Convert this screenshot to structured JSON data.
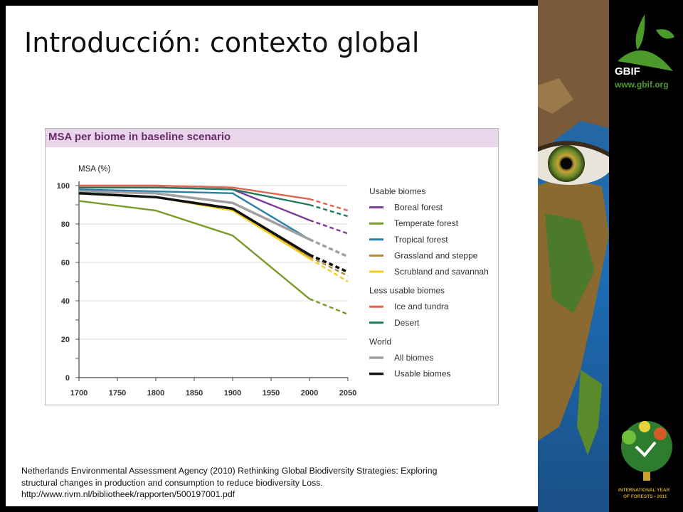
{
  "slide": {
    "title": "Introducción: contexto global",
    "citation_lines": [
      "Netherlands Environmental Assessment Agency (2010) Rethinking Global Biodiversity Strategies: Exploring",
      "structural changes in production and consumption to reduce biodiversity Loss.",
      "http://www.rivm.nl/bibliotheek/rapporten/500197001.pdf"
    ]
  },
  "branding": {
    "logo_text": "GBIF",
    "logo_url": "www.gbif.org",
    "badge_line1": "INTERNATIONAL YEAR",
    "badge_line2": "OF FORESTS • 2011",
    "colors": {
      "gbif_green": "#4c9a2a",
      "badge_gold": "#c9a227"
    }
  },
  "chart_data": {
    "type": "line",
    "title": "MSA per biome in baseline scenario",
    "ylabel": "MSA (%)",
    "xlabel": "",
    "x": [
      1700,
      1800,
      1900,
      2000,
      2050
    ],
    "xticks": [
      1700,
      1750,
      1800,
      1850,
      1900,
      1950,
      2000,
      2050
    ],
    "yticks": [
      0,
      20,
      40,
      60,
      80,
      100
    ],
    "ylim": [
      0,
      100
    ],
    "xlim": [
      1700,
      2050
    ],
    "projection_from": 2000,
    "projection_style": "dashed",
    "legend_position": "right",
    "legend_groups": [
      {
        "label": "Usable biomes",
        "series": [
          "Boreal forest",
          "Temperate forest",
          "Tropical forest",
          "Grassland and steppe",
          "Scrubland and savannah"
        ]
      },
      {
        "label": "Less usable biomes",
        "series": [
          "Ice and tundra",
          "Desert"
        ]
      },
      {
        "label": "World",
        "series": [
          "All biomes",
          "Usable biomes"
        ]
      }
    ],
    "series": [
      {
        "name": "Boreal forest",
        "color": "#7b3a96",
        "values": [
          99,
          99,
          98,
          82,
          75
        ]
      },
      {
        "name": "Temperate forest",
        "color": "#7a9a2a",
        "values": [
          92,
          87,
          74,
          41,
          33
        ]
      },
      {
        "name": "Tropical forest",
        "color": "#2a80a8",
        "values": [
          98,
          97,
          96,
          72,
          63
        ]
      },
      {
        "name": "Grassland and steppe",
        "color": "#b08a3a",
        "values": [
          96,
          94,
          87,
          63,
          53
        ]
      },
      {
        "name": "Scrubland and savannah",
        "color": "#f0cf1e",
        "values": [
          96,
          94,
          87,
          62,
          50
        ]
      },
      {
        "name": "Ice and tundra",
        "color": "#e0634a",
        "values": [
          100,
          100,
          99,
          93,
          87
        ]
      },
      {
        "name": "Desert",
        "color": "#1e7a5e",
        "values": [
          99,
          99,
          98,
          90,
          84
        ]
      },
      {
        "name": "All biomes",
        "color": "#a0a0a0",
        "values": [
          97,
          96,
          91,
          72,
          63
        ],
        "width": 3.5
      },
      {
        "name": "Usable biomes",
        "color": "#111111",
        "values": [
          96,
          94,
          88,
          64,
          55
        ],
        "width": 3.5
      }
    ]
  }
}
